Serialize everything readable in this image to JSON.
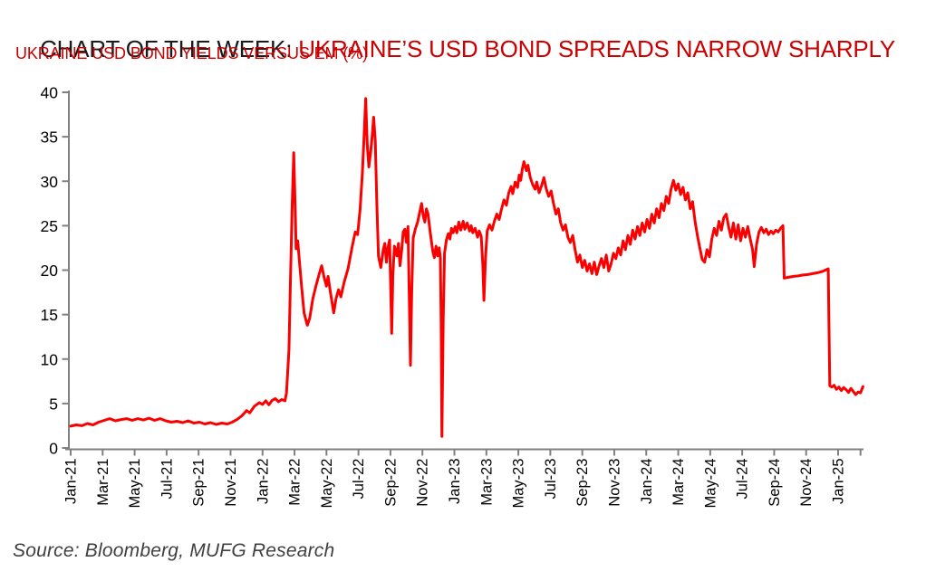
{
  "header": {
    "title_black": "CHART OF THE WEEK: ",
    "title_red": "UKRAINE’S USD BOND SPREADS NARROW SHARPLY",
    "subtitle": "UKRAINE USD BOND YIELDS VERSUS EM (%)"
  },
  "source": {
    "text": "Source: Bloomberg, MUFG Research"
  },
  "chart_data": {
    "type": "line",
    "title": "UKRAINE USD BOND YIELDS VERSUS EM (%)",
    "series_name": "Ukraine USD bond yield spread versus EM (%)",
    "line_color": "#fb0000",
    "axis_color": "#808080",
    "label_color": "#000000",
    "legend": "none",
    "grid": false,
    "ylim": [
      0,
      40
    ],
    "y_ticks": [
      0,
      5,
      10,
      15,
      20,
      25,
      30,
      35,
      40
    ],
    "xlim_months": [
      0,
      49.75
    ],
    "x_unit": "months since Jan-2021",
    "x_ticks": [
      {
        "m": 0,
        "label": "Jan-21"
      },
      {
        "m": 2,
        "label": "Mar-21"
      },
      {
        "m": 4,
        "label": "May-21"
      },
      {
        "m": 6,
        "label": "Jul-21"
      },
      {
        "m": 8,
        "label": "Sep-21"
      },
      {
        "m": 10,
        "label": "Nov-21"
      },
      {
        "m": 12,
        "label": "Jan-22"
      },
      {
        "m": 14,
        "label": "Mar-22"
      },
      {
        "m": 16,
        "label": "May-22"
      },
      {
        "m": 18,
        "label": "Jul-22"
      },
      {
        "m": 20,
        "label": "Sep-22"
      },
      {
        "m": 22,
        "label": "Nov-22"
      },
      {
        "m": 24,
        "label": "Jan-23"
      },
      {
        "m": 26,
        "label": "Mar-23"
      },
      {
        "m": 28,
        "label": "May-23"
      },
      {
        "m": 30,
        "label": "Jul-23"
      },
      {
        "m": 32,
        "label": "Sep-23"
      },
      {
        "m": 34,
        "label": "Nov-23"
      },
      {
        "m": 36,
        "label": "Jan-24"
      },
      {
        "m": 38,
        "label": "Mar-24"
      },
      {
        "m": 40,
        "label": "May-24"
      },
      {
        "m": 42,
        "label": "Jul-24"
      },
      {
        "m": 44,
        "label": "Sep-24"
      },
      {
        "m": 46,
        "label": "Nov-24"
      },
      {
        "m": 48,
        "label": "Jan-25"
      },
      {
        "m": 49.4,
        "label": ""
      }
    ],
    "points": [
      [
        0,
        2.45
      ],
      [
        0.35,
        2.6
      ],
      [
        0.7,
        2.5
      ],
      [
        1.05,
        2.75
      ],
      [
        1.4,
        2.6
      ],
      [
        1.75,
        2.9
      ],
      [
        2.1,
        3.1
      ],
      [
        2.45,
        3.3
      ],
      [
        2.8,
        3.05
      ],
      [
        3.15,
        3.2
      ],
      [
        3.5,
        3.3
      ],
      [
        3.85,
        3.1
      ],
      [
        4.2,
        3.3
      ],
      [
        4.55,
        3.15
      ],
      [
        4.9,
        3.35
      ],
      [
        5.25,
        3.1
      ],
      [
        5.6,
        3.3
      ],
      [
        5.95,
        3.05
      ],
      [
        6.3,
        2.9
      ],
      [
        6.65,
        3.0
      ],
      [
        7.0,
        2.85
      ],
      [
        7.35,
        3.05
      ],
      [
        7.7,
        2.8
      ],
      [
        8.05,
        2.9
      ],
      [
        8.4,
        2.7
      ],
      [
        8.75,
        2.85
      ],
      [
        9.1,
        2.65
      ],
      [
        9.45,
        2.8
      ],
      [
        9.8,
        2.7
      ],
      [
        10.1,
        2.9
      ],
      [
        10.4,
        3.2
      ],
      [
        10.7,
        3.6
      ],
      [
        11.0,
        4.2
      ],
      [
        11.2,
        3.95
      ],
      [
        11.5,
        4.7
      ],
      [
        11.8,
        5.1
      ],
      [
        12.0,
        4.9
      ],
      [
        12.2,
        5.3
      ],
      [
        12.4,
        4.85
      ],
      [
        12.6,
        5.35
      ],
      [
        12.8,
        5.55
      ],
      [
        13.0,
        5.2
      ],
      [
        13.2,
        5.45
      ],
      [
        13.4,
        5.3
      ],
      [
        13.5,
        6.2
      ],
      [
        13.65,
        11
      ],
      [
        13.75,
        19
      ],
      [
        13.85,
        27
      ],
      [
        13.95,
        33.2
      ],
      [
        14.05,
        26.5
      ],
      [
        14.1,
        22.4
      ],
      [
        14.2,
        23.3
      ],
      [
        14.3,
        21.2
      ],
      [
        14.45,
        18.0
      ],
      [
        14.6,
        15.2
      ],
      [
        14.8,
        13.8
      ],
      [
        14.95,
        14.6
      ],
      [
        15.15,
        16.8
      ],
      [
        15.35,
        18.3
      ],
      [
        15.55,
        19.6
      ],
      [
        15.7,
        20.5
      ],
      [
        15.85,
        19.2
      ],
      [
        16.0,
        18.2
      ],
      [
        16.1,
        19.3
      ],
      [
        16.25,
        17.5
      ],
      [
        16.45,
        15.2
      ],
      [
        16.6,
        16.8
      ],
      [
        16.75,
        17.8
      ],
      [
        16.9,
        17.0
      ],
      [
        17.1,
        18.6
      ],
      [
        17.35,
        20.2
      ],
      [
        17.6,
        22.6
      ],
      [
        17.8,
        24.3
      ],
      [
        17.95,
        24.0
      ],
      [
        18.1,
        26.8
      ],
      [
        18.25,
        31.0
      ],
      [
        18.35,
        35.0
      ],
      [
        18.45,
        39.3
      ],
      [
        18.55,
        34.2
      ],
      [
        18.65,
        31.6
      ],
      [
        18.75,
        33.1
      ],
      [
        18.85,
        34.9
      ],
      [
        18.95,
        37.2
      ],
      [
        19.05,
        34.5
      ],
      [
        19.15,
        27.5
      ],
      [
        19.25,
        21.6
      ],
      [
        19.4,
        20.3
      ],
      [
        19.55,
        22.3
      ],
      [
        19.65,
        23.0
      ],
      [
        19.75,
        20.9
      ],
      [
        19.85,
        22.6
      ],
      [
        19.95,
        23.4
      ],
      [
        20.02,
        17.5
      ],
      [
        20.08,
        12.9
      ],
      [
        20.15,
        19.5
      ],
      [
        20.25,
        22.7
      ],
      [
        20.4,
        21.6
      ],
      [
        20.5,
        23.0
      ],
      [
        20.6,
        20.5
      ],
      [
        20.7,
        22.2
      ],
      [
        20.8,
        24.3
      ],
      [
        20.9,
        24.6
      ],
      [
        21.0,
        23.1
      ],
      [
        21.1,
        24.9
      ],
      [
        21.18,
        17.0
      ],
      [
        21.25,
        9.3
      ],
      [
        21.33,
        17.5
      ],
      [
        21.42,
        23.6
      ],
      [
        21.55,
        24.6
      ],
      [
        21.7,
        25.4
      ],
      [
        21.85,
        26.7
      ],
      [
        21.95,
        27.5
      ],
      [
        22.05,
        26.1
      ],
      [
        22.15,
        25.4
      ],
      [
        22.25,
        26.9
      ],
      [
        22.35,
        26.3
      ],
      [
        22.5,
        24.1
      ],
      [
        22.65,
        22.1
      ],
      [
        22.75,
        21.4
      ],
      [
        22.85,
        22.7
      ],
      [
        22.95,
        21.6
      ],
      [
        23.05,
        22.5
      ],
      [
        23.12,
        21.4
      ],
      [
        23.17,
        14.0
      ],
      [
        23.22,
        1.3
      ],
      [
        23.3,
        14.5
      ],
      [
        23.38,
        21.9
      ],
      [
        23.5,
        23.4
      ],
      [
        23.62,
        24.1
      ],
      [
        23.72,
        23.5
      ],
      [
        23.82,
        24.7
      ],
      [
        23.92,
        24.2
      ],
      [
        24.05,
        24.9
      ],
      [
        24.15,
        24.2
      ],
      [
        24.28,
        25.4
      ],
      [
        24.4,
        24.5
      ],
      [
        24.55,
        25.5
      ],
      [
        24.65,
        24.6
      ],
      [
        24.8,
        25.3
      ],
      [
        24.95,
        24.4
      ],
      [
        25.05,
        25.0
      ],
      [
        25.15,
        24.2
      ],
      [
        25.3,
        24.7
      ],
      [
        25.45,
        23.7
      ],
      [
        25.55,
        24.4
      ],
      [
        25.68,
        23.8
      ],
      [
        25.78,
        20.5
      ],
      [
        25.85,
        16.6
      ],
      [
        25.95,
        21.5
      ],
      [
        26.05,
        24.4
      ],
      [
        26.2,
        25.1
      ],
      [
        26.35,
        24.5
      ],
      [
        26.5,
        25.5
      ],
      [
        26.65,
        26.3
      ],
      [
        26.8,
        25.7
      ],
      [
        26.95,
        26.9
      ],
      [
        27.1,
        27.9
      ],
      [
        27.25,
        27.3
      ],
      [
        27.4,
        28.7
      ],
      [
        27.55,
        29.4
      ],
      [
        27.65,
        28.6
      ],
      [
        27.8,
        29.9
      ],
      [
        27.95,
        29.3
      ],
      [
        28.05,
        30.7
      ],
      [
        28.15,
        30.1
      ],
      [
        28.25,
        31.4
      ],
      [
        28.35,
        32.2
      ],
      [
        28.5,
        31.2
      ],
      [
        28.6,
        31.8
      ],
      [
        28.75,
        30.4
      ],
      [
        28.9,
        29.6
      ],
      [
        29.05,
        29.1
      ],
      [
        29.15,
        29.9
      ],
      [
        29.3,
        28.7
      ],
      [
        29.45,
        29.5
      ],
      [
        29.6,
        30.4
      ],
      [
        29.75,
        29.1
      ],
      [
        29.9,
        28.3
      ],
      [
        30.05,
        28.9
      ],
      [
        30.2,
        27.5
      ],
      [
        30.35,
        26.3
      ],
      [
        30.5,
        26.9
      ],
      [
        30.65,
        25.3
      ],
      [
        30.8,
        24.5
      ],
      [
        30.95,
        25.1
      ],
      [
        31.1,
        23.7
      ],
      [
        31.25,
        23.1
      ],
      [
        31.4,
        23.9
      ],
      [
        31.55,
        22.3
      ],
      [
        31.7,
        20.9
      ],
      [
        31.85,
        21.7
      ],
      [
        32.0,
        20.3
      ],
      [
        32.15,
        21.1
      ],
      [
        32.3,
        19.9
      ],
      [
        32.45,
        20.7
      ],
      [
        32.6,
        19.6
      ],
      [
        32.75,
        20.9
      ],
      [
        32.9,
        19.5
      ],
      [
        33.05,
        20.5
      ],
      [
        33.2,
        21.3
      ],
      [
        33.35,
        20.3
      ],
      [
        33.5,
        21.7
      ],
      [
        33.65,
        19.9
      ],
      [
        33.8,
        20.7
      ],
      [
        33.95,
        21.9
      ],
      [
        34.1,
        21.3
      ],
      [
        34.25,
        22.5
      ],
      [
        34.4,
        21.7
      ],
      [
        34.55,
        23.3
      ],
      [
        34.7,
        22.3
      ],
      [
        34.85,
        23.9
      ],
      [
        35.0,
        22.9
      ],
      [
        35.15,
        24.5
      ],
      [
        35.3,
        23.5
      ],
      [
        35.45,
        24.9
      ],
      [
        35.6,
        23.9
      ],
      [
        35.75,
        25.3
      ],
      [
        35.9,
        24.3
      ],
      [
        36.05,
        25.7
      ],
      [
        36.2,
        24.7
      ],
      [
        36.35,
        26.3
      ],
      [
        36.5,
        25.3
      ],
      [
        36.65,
        26.9
      ],
      [
        36.8,
        25.9
      ],
      [
        36.95,
        27.5
      ],
      [
        37.1,
        26.7
      ],
      [
        37.25,
        28.3
      ],
      [
        37.4,
        27.5
      ],
      [
        37.55,
        29.1
      ],
      [
        37.7,
        30.1
      ],
      [
        37.85,
        29.0
      ],
      [
        38.0,
        29.7
      ],
      [
        38.15,
        28.5
      ],
      [
        38.3,
        29.3
      ],
      [
        38.45,
        27.9
      ],
      [
        38.6,
        28.7
      ],
      [
        38.75,
        26.9
      ],
      [
        38.9,
        27.7
      ],
      [
        39.05,
        25.5
      ],
      [
        39.2,
        23.9
      ],
      [
        39.35,
        22.5
      ],
      [
        39.5,
        21.2
      ],
      [
        39.65,
        20.9
      ],
      [
        39.8,
        22.3
      ],
      [
        39.95,
        21.5
      ],
      [
        40.1,
        23.5
      ],
      [
        40.25,
        24.7
      ],
      [
        40.4,
        23.9
      ],
      [
        40.55,
        25.5
      ],
      [
        40.7,
        24.5
      ],
      [
        40.85,
        25.9
      ],
      [
        41.0,
        26.3
      ],
      [
        41.15,
        24.9
      ],
      [
        41.3,
        23.7
      ],
      [
        41.45,
        25.3
      ],
      [
        41.6,
        23.5
      ],
      [
        41.75,
        25.1
      ],
      [
        41.9,
        23.3
      ],
      [
        42.05,
        24.7
      ],
      [
        42.2,
        23.7
      ],
      [
        42.35,
        24.9
      ],
      [
        42.5,
        23.5
      ],
      [
        42.65,
        22.3
      ],
      [
        42.75,
        20.4
      ],
      [
        42.9,
        22.9
      ],
      [
        43.05,
        24.3
      ],
      [
        43.2,
        24.8
      ],
      [
        43.35,
        24.2
      ],
      [
        43.5,
        24.6
      ],
      [
        43.65,
        24.0
      ],
      [
        43.8,
        24.4
      ],
      [
        43.95,
        24.1
      ],
      [
        44.1,
        24.5
      ],
      [
        44.25,
        24.3
      ],
      [
        44.4,
        24.7
      ],
      [
        44.55,
        25.0
      ],
      [
        44.63,
        19.1
      ],
      [
        44.9,
        19.2
      ],
      [
        45.2,
        19.3
      ],
      [
        45.5,
        19.35
      ],
      [
        45.8,
        19.45
      ],
      [
        46.1,
        19.5
      ],
      [
        46.4,
        19.6
      ],
      [
        46.7,
        19.7
      ],
      [
        47.0,
        19.85
      ],
      [
        47.2,
        20.0
      ],
      [
        47.38,
        20.15
      ],
      [
        47.48,
        7.0
      ],
      [
        47.6,
        6.85
      ],
      [
        47.75,
        7.05
      ],
      [
        47.9,
        6.6
      ],
      [
        48.05,
        6.85
      ],
      [
        48.2,
        6.45
      ],
      [
        48.35,
        6.8
      ],
      [
        48.5,
        6.55
      ],
      [
        48.65,
        6.25
      ],
      [
        48.8,
        6.7
      ],
      [
        48.95,
        6.35
      ],
      [
        49.1,
        6.0
      ],
      [
        49.25,
        6.3
      ],
      [
        49.4,
        6.2
      ],
      [
        49.55,
        6.9
      ]
    ]
  }
}
